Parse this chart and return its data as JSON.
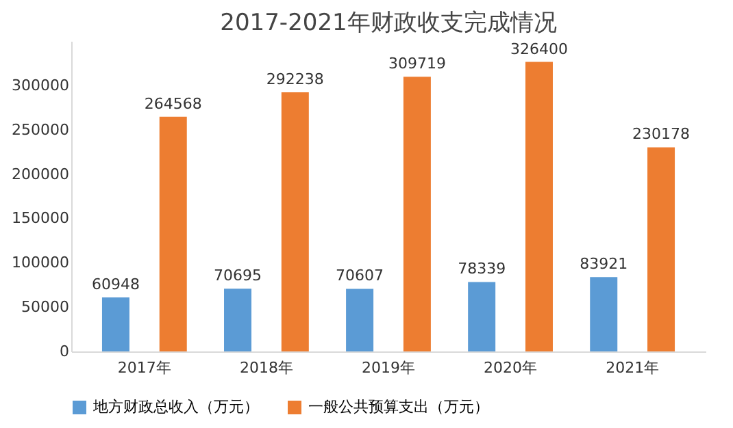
{
  "chart_data": {
    "type": "bar",
    "title": "2017-2021年财政收支完成情况",
    "categories": [
      "2017年",
      "2018年",
      "2019年",
      "2020年",
      "2021年"
    ],
    "series": [
      {
        "name": "地方财政总收入（万元）",
        "color": "#5b9bd5",
        "values": [
          60948,
          70695,
          70607,
          78339,
          83921
        ]
      },
      {
        "name": "一般公共预算支出（万元）",
        "color": "#ed7d31",
        "values": [
          264568,
          292238,
          309719,
          326400,
          230178
        ]
      }
    ],
    "ylim": [
      0,
      350000
    ],
    "yticks": [
      0,
      50000,
      100000,
      150000,
      200000,
      250000,
      300000
    ],
    "grid": false,
    "legend": "bottom",
    "data_labels": true
  }
}
